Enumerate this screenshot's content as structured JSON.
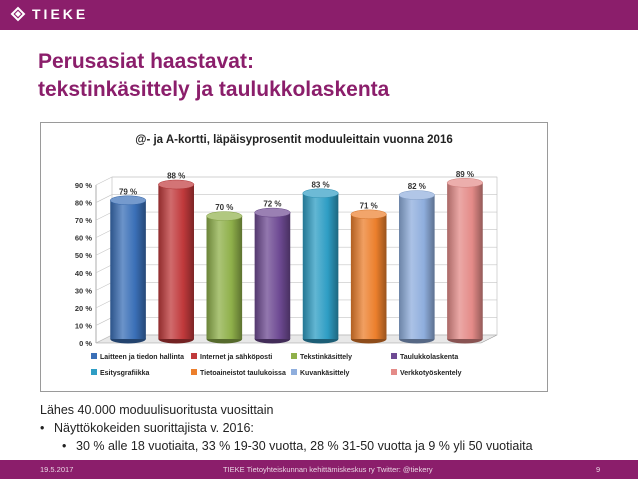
{
  "brand": {
    "name": "TIEKE",
    "color": "#8b1e6b"
  },
  "title": {
    "line1": "Perusasiat haastavat:",
    "line2": "tekstinkäsittely ja taulukkolaskenta"
  },
  "chart_data": {
    "type": "bar",
    "title": "@- ja A-kortti, läpäisyprosentit moduuleittain vuonna 2016",
    "categories": [
      "Laitteen ja tiedon hallinta",
      "Internet ja sähköposti",
      "Tekstinkäsittely",
      "Taulukkolaskenta",
      "Esitysgrafiikka",
      "Tietoaineistot taulukoissa",
      "Kuvankäsittely",
      "Verkkotyöskentely"
    ],
    "values": [
      79,
      88,
      70,
      72,
      83,
      71,
      82,
      89
    ],
    "value_labels": [
      "79 %",
      "88 %",
      "70 %",
      "72 %",
      "83 %",
      "71 %",
      "82 %",
      "89 %"
    ],
    "colors": [
      "#3a6fb7",
      "#c0393b",
      "#8fb04a",
      "#6e4a93",
      "#2e9dc4",
      "#ec7f2c",
      "#8faedd",
      "#e48b88"
    ],
    "ylim": [
      0,
      90
    ],
    "yticks": [
      "0 %",
      "10 %",
      "20 %",
      "30 %",
      "40 %",
      "50 %",
      "60 %",
      "70 %",
      "80 %",
      "90 %"
    ],
    "grid": true,
    "legend": "bottom"
  },
  "body": {
    "line1": "Lähes 40.000 moduulisuoritusta vuosittain",
    "bullet1": "Näyttökokeiden suorittajista v. 2016:",
    "bullet2": "30 % alle 18 vuotiaita, 33 % 19-30 vuotta, 28 % 31-50 vuotta ja 9 % yli 50 vuotiaita",
    "bullet_char": "•"
  },
  "footer": {
    "date": "19.5.2017",
    "org": "TIEKE Tietoyhteiskunnan kehittämiskeskus ry   Twitter: @tiekery",
    "page": "9"
  }
}
